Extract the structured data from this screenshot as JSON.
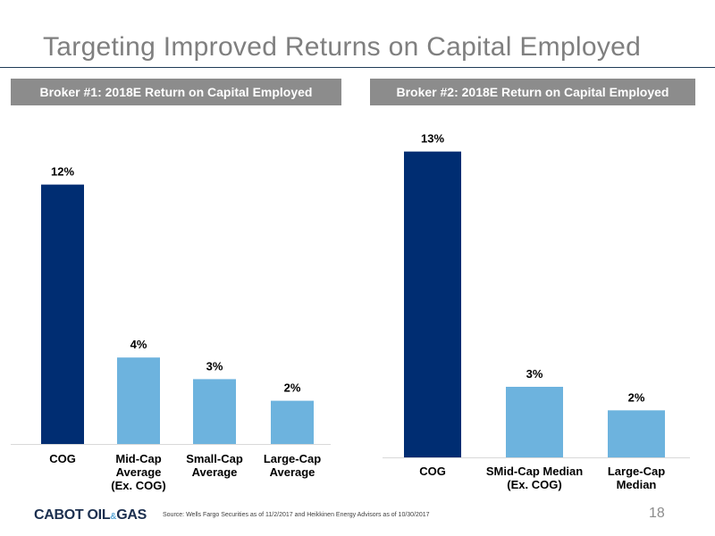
{
  "slide": {
    "title": "Targeting Improved Returns on Capital Employed",
    "page_number": "18",
    "source_note": "Source: Wells Fargo Securities as of 11/2/2017 and Heikkinen Energy Advisors as of 10/30/2017",
    "logo": {
      "main": "CABOT OIL",
      "amp": "&",
      "end": "GAS"
    }
  },
  "colors": {
    "highlight": "#002d72",
    "peer": "#6db3de",
    "header_bg": "#8c8c8c",
    "title": "#7f7f7f"
  },
  "chart_data": [
    {
      "type": "bar",
      "title": "Broker #1: 2018E Return on Capital Employed",
      "categories": [
        [
          "COG"
        ],
        [
          "Mid-Cap",
          "Average",
          "(Ex. COG)"
        ],
        [
          "Small-Cap",
          "Average"
        ],
        [
          "Large-Cap",
          "Average"
        ]
      ],
      "values": [
        12,
        4,
        3,
        2
      ],
      "data_labels": [
        "12%",
        "4%",
        "3%",
        "2%"
      ],
      "bar_colors": [
        "#002d72",
        "#6db3de",
        "#6db3de",
        "#6db3de"
      ],
      "ylim": [
        0,
        13.1
      ],
      "grid": false,
      "legend": "none"
    },
    {
      "type": "bar",
      "title": "Broker #2: 2018E Return on Capital Employed",
      "categories": [
        [
          "COG"
        ],
        [
          "SMid-Cap Median",
          "(Ex. COG)"
        ],
        [
          "Large-Cap",
          "Median"
        ]
      ],
      "values": [
        13,
        3,
        2
      ],
      "data_labels": [
        "13%",
        "3%",
        "2%"
      ],
      "bar_colors": [
        "#002d72",
        "#6db3de",
        "#6db3de"
      ],
      "ylim": [
        0,
        13.1
      ],
      "grid": false,
      "legend": "none"
    }
  ]
}
